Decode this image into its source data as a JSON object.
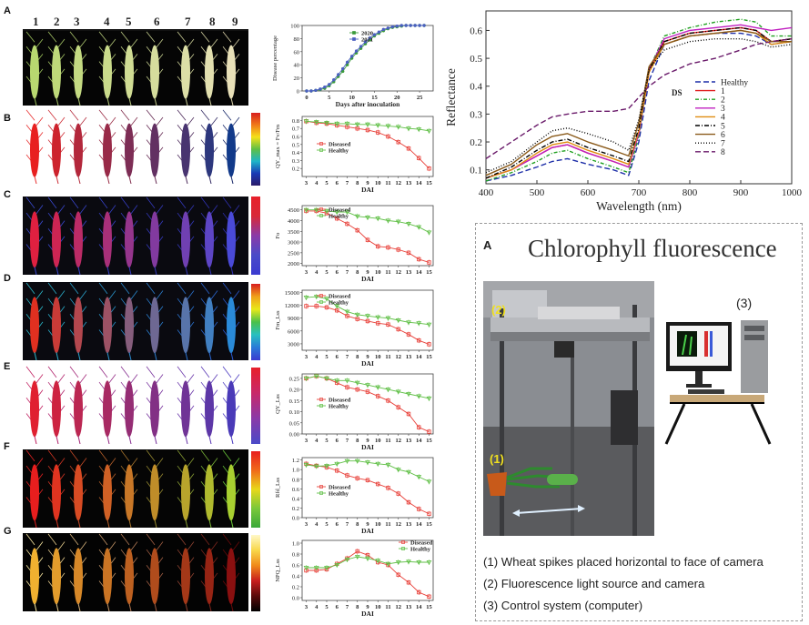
{
  "panel_letters": [
    "A",
    "B",
    "C",
    "D",
    "E",
    "F",
    "G"
  ],
  "spike_numbers": [
    "1",
    "2",
    "3",
    "4",
    "5",
    "6",
    "7",
    "8",
    "9"
  ],
  "dai_ticks": [
    "3",
    "4",
    "5",
    "6",
    "7",
    "8",
    "9",
    "10",
    "11",
    "12",
    "13",
    "14",
    "15"
  ],
  "xlabel_dai": "DAI",
  "legend": {
    "diseased": "Diseased",
    "healthy": "Healthy"
  },
  "colors": {
    "diseased": "#e8413a",
    "healthy": "#5fbf45",
    "y2020": "#3a9b3a",
    "y2021": "#4a5fc0"
  },
  "chart_data": [
    {
      "type": "line",
      "title": "",
      "xlabel": "Days after inoculation",
      "ylabel": "Disease percentage",
      "xlim": [
        0,
        27
      ],
      "ylim": [
        0,
        100
      ],
      "xticks": [
        "0",
        "5",
        "10",
        "15",
        "20",
        "25"
      ],
      "yticks": [
        "0",
        "20",
        "40",
        "60",
        "80",
        "100"
      ],
      "series": [
        {
          "name": "2020",
          "x": [
            0,
            1,
            2,
            3,
            4,
            5,
            6,
            7,
            8,
            9,
            10,
            11,
            12,
            13,
            14,
            15,
            16,
            17,
            18,
            19,
            20,
            21,
            22,
            23,
            24,
            25,
            26
          ],
          "values": [
            0,
            0,
            1,
            2,
            4,
            8,
            14,
            22,
            30,
            40,
            50,
            58,
            65,
            72,
            78,
            84,
            88,
            92,
            95,
            97,
            98,
            99,
            100,
            100,
            100,
            100,
            100
          ]
        },
        {
          "name": "2021",
          "x": [
            0,
            1,
            2,
            3,
            4,
            5,
            6,
            7,
            8,
            9,
            10,
            11,
            12,
            13,
            14,
            15,
            16,
            17,
            18,
            19,
            20,
            21,
            22,
            23,
            24,
            25,
            26
          ],
          "values": [
            0,
            0,
            1,
            3,
            6,
            10,
            17,
            25,
            34,
            44,
            53,
            61,
            68,
            75,
            81,
            86,
            90,
            94,
            96,
            98,
            99,
            100,
            100,
            100,
            100,
            100,
            100
          ]
        }
      ]
    },
    {
      "type": "line",
      "title": "",
      "xlabel": "DAI",
      "ylabel": "QY_max = Fv/Fm",
      "ylim": [
        0.1,
        0.85
      ],
      "yticks": [
        "0.2",
        "0.3",
        "0.4",
        "0.5",
        "0.6",
        "0.7",
        "0.8"
      ],
      "x": [
        3,
        4,
        5,
        6,
        7,
        8,
        9,
        10,
        11,
        12,
        13,
        14,
        15
      ],
      "series": [
        {
          "name": "Diseased",
          "values": [
            0.79,
            0.77,
            0.76,
            0.74,
            0.72,
            0.7,
            0.68,
            0.65,
            0.6,
            0.53,
            0.45,
            0.33,
            0.2
          ]
        },
        {
          "name": "Healthy",
          "values": [
            0.79,
            0.78,
            0.77,
            0.76,
            0.76,
            0.75,
            0.75,
            0.74,
            0.73,
            0.72,
            0.7,
            0.69,
            0.67
          ]
        }
      ]
    },
    {
      "type": "line",
      "title": "",
      "xlabel": "DAI",
      "ylabel": "Fo",
      "ylim": [
        1900,
        4700
      ],
      "yticks": [
        "2000",
        "2500",
        "3000",
        "3500",
        "4000",
        "4500"
      ],
      "x": [
        3,
        4,
        5,
        6,
        7,
        8,
        9,
        10,
        11,
        12,
        13,
        14,
        15
      ],
      "series": [
        {
          "name": "Diseased",
          "values": [
            4450,
            4450,
            4350,
            4100,
            3850,
            3550,
            3100,
            2800,
            2750,
            2650,
            2500,
            2200,
            2050
          ]
        },
        {
          "name": "Healthy",
          "values": [
            4500,
            4500,
            4450,
            4400,
            4400,
            4200,
            4150,
            4100,
            4000,
            3950,
            3850,
            3700,
            3450
          ]
        }
      ]
    },
    {
      "type": "line",
      "title": "",
      "xlabel": "DAI",
      "ylabel": "Fm_Lss",
      "ylim": [
        1500,
        15500
      ],
      "yticks": [
        "3000",
        "6000",
        "9000",
        "12000",
        "15000"
      ],
      "x": [
        3,
        4,
        5,
        6,
        7,
        8,
        9,
        10,
        11,
        12,
        13,
        14,
        15
      ],
      "series": [
        {
          "name": "Diseased",
          "values": [
            11800,
            11800,
            11500,
            10800,
            9500,
            8800,
            8300,
            7800,
            7500,
            6400,
            5200,
            3800,
            2900
          ]
        },
        {
          "name": "Healthy",
          "values": [
            13800,
            14000,
            13500,
            11800,
            10500,
            9800,
            9500,
            9200,
            9000,
            8500,
            8000,
            7800,
            7500
          ]
        }
      ]
    },
    {
      "type": "line",
      "title": "",
      "xlabel": "DAI",
      "ylabel": "QY_Lss",
      "ylim": [
        0.0,
        0.27
      ],
      "yticks": [
        "0.00",
        "0.05",
        "0.10",
        "0.15",
        "0.20",
        "0.25"
      ],
      "x": [
        3,
        4,
        5,
        6,
        7,
        8,
        9,
        10,
        11,
        12,
        13,
        14,
        15
      ],
      "series": [
        {
          "name": "Diseased",
          "values": [
            0.25,
            0.26,
            0.25,
            0.23,
            0.21,
            0.2,
            0.19,
            0.17,
            0.15,
            0.12,
            0.09,
            0.03,
            0.01
          ]
        },
        {
          "name": "Healthy",
          "values": [
            0.25,
            0.26,
            0.25,
            0.24,
            0.24,
            0.23,
            0.22,
            0.21,
            0.2,
            0.19,
            0.18,
            0.17,
            0.16
          ]
        }
      ]
    },
    {
      "type": "line",
      "title": "",
      "xlabel": "DAI",
      "ylabel": "Rfd_Lss",
      "ylim": [
        0.0,
        1.25
      ],
      "yticks": [
        "0.0",
        "0.2",
        "0.4",
        "0.6",
        "0.8",
        "1.0",
        "1.2"
      ],
      "x": [
        3,
        4,
        5,
        6,
        7,
        8,
        9,
        10,
        11,
        12,
        13,
        14,
        15
      ],
      "series": [
        {
          "name": "Diseased",
          "values": [
            1.12,
            1.08,
            1.05,
            0.98,
            0.88,
            0.82,
            0.78,
            0.7,
            0.62,
            0.5,
            0.32,
            0.18,
            0.08
          ]
        },
        {
          "name": "Healthy",
          "values": [
            1.1,
            1.07,
            1.08,
            1.12,
            1.18,
            1.18,
            1.15,
            1.12,
            1.1,
            1.0,
            0.95,
            0.85,
            0.75
          ]
        }
      ]
    },
    {
      "type": "line",
      "title": "",
      "xlabel": "DAI",
      "ylabel": "NPQ_Lss",
      "ylim": [
        -0.05,
        1.05
      ],
      "yticks": [
        "0.0",
        "0.2",
        "0.4",
        "0.6",
        "0.8",
        "1.0"
      ],
      "x": [
        3,
        4,
        5,
        6,
        7,
        8,
        9,
        10,
        11,
        12,
        13,
        14,
        15
      ],
      "series": [
        {
          "name": "Diseased",
          "values": [
            0.5,
            0.5,
            0.52,
            0.62,
            0.72,
            0.85,
            0.78,
            0.65,
            0.6,
            0.42,
            0.28,
            0.1,
            0.02
          ]
        },
        {
          "name": "Healthy",
          "values": [
            0.55,
            0.55,
            0.55,
            0.6,
            0.7,
            0.75,
            0.72,
            0.68,
            0.62,
            0.65,
            0.66,
            0.65,
            0.65
          ]
        }
      ]
    },
    {
      "type": "line",
      "title": "",
      "xlabel": "Wavelength (nm)",
      "ylabel": "Reflectance",
      "xlim": [
        400,
        1000
      ],
      "ylim": [
        0.05,
        0.67
      ],
      "xticks": [
        "400",
        "500",
        "600",
        "700",
        "800",
        "900",
        "1000"
      ],
      "yticks": [
        "0.1",
        "0.2",
        "0.3",
        "0.4",
        "0.5",
        "0.6"
      ],
      "legend_title": "DS",
      "x": [
        400,
        450,
        500,
        530,
        560,
        600,
        650,
        680,
        700,
        720,
        750,
        800,
        850,
        900,
        930,
        960,
        1000
      ],
      "series": [
        {
          "name": "Healthy",
          "color": "#1d2ea8",
          "dash": "6,3",
          "values": [
            0.06,
            0.08,
            0.11,
            0.13,
            0.14,
            0.12,
            0.1,
            0.08,
            0.2,
            0.42,
            0.55,
            0.58,
            0.59,
            0.59,
            0.58,
            0.55,
            0.56
          ]
        },
        {
          "name": "1",
          "color": "#e02020",
          "dash": "",
          "values": [
            0.07,
            0.1,
            0.15,
            0.18,
            0.19,
            0.16,
            0.13,
            0.11,
            0.23,
            0.45,
            0.56,
            0.59,
            0.6,
            0.61,
            0.6,
            0.56,
            0.57
          ]
        },
        {
          "name": "2",
          "color": "#20a020",
          "dash": "4,2,1,2",
          "values": [
            0.06,
            0.09,
            0.13,
            0.16,
            0.17,
            0.14,
            0.11,
            0.09,
            0.22,
            0.46,
            0.58,
            0.61,
            0.63,
            0.64,
            0.63,
            0.58,
            0.58
          ]
        },
        {
          "name": "3",
          "color": "#c020c0",
          "dash": "",
          "values": [
            0.07,
            0.1,
            0.15,
            0.18,
            0.19,
            0.16,
            0.13,
            0.11,
            0.23,
            0.46,
            0.57,
            0.6,
            0.61,
            0.62,
            0.61,
            0.6,
            0.61
          ]
        },
        {
          "name": "4",
          "color": "#e08c10",
          "dash": "",
          "values": [
            0.07,
            0.1,
            0.16,
            0.19,
            0.2,
            0.17,
            0.14,
            0.12,
            0.24,
            0.45,
            0.55,
            0.58,
            0.59,
            0.6,
            0.59,
            0.55,
            0.56
          ]
        },
        {
          "name": "5",
          "color": "#000000",
          "dash": "5,2,1,2",
          "values": [
            0.07,
            0.11,
            0.17,
            0.2,
            0.21,
            0.18,
            0.15,
            0.13,
            0.25,
            0.46,
            0.56,
            0.59,
            0.6,
            0.61,
            0.6,
            0.56,
            0.57
          ]
        },
        {
          "name": "6",
          "color": "#8a5a1a",
          "dash": "",
          "values": [
            0.08,
            0.12,
            0.19,
            0.22,
            0.23,
            0.2,
            0.17,
            0.15,
            0.27,
            0.47,
            0.55,
            0.58,
            0.59,
            0.6,
            0.59,
            0.56,
            0.56
          ]
        },
        {
          "name": "7",
          "color": "#000000",
          "dash": "1,2",
          "values": [
            0.09,
            0.13,
            0.2,
            0.24,
            0.25,
            0.23,
            0.2,
            0.17,
            0.28,
            0.46,
            0.53,
            0.56,
            0.57,
            0.57,
            0.56,
            0.54,
            0.55
          ]
        },
        {
          "name": "8",
          "color": "#6a1a6a",
          "dash": "6,3",
          "values": [
            0.14,
            0.2,
            0.26,
            0.29,
            0.3,
            0.31,
            0.31,
            0.32,
            0.36,
            0.4,
            0.44,
            0.48,
            0.5,
            0.53,
            0.55,
            0.56,
            0.57
          ]
        }
      ]
    }
  ],
  "fluor": {
    "letter": "A",
    "title": "Chlorophyll fluorescence",
    "marker1": "(1)",
    "marker2": "(2)",
    "marker3": "(3)",
    "captions": [
      "(1) Wheat spikes placed horizontal to face of camera",
      "(2) Fluorescence light source and camera",
      "(3) Control system (computer)"
    ]
  }
}
